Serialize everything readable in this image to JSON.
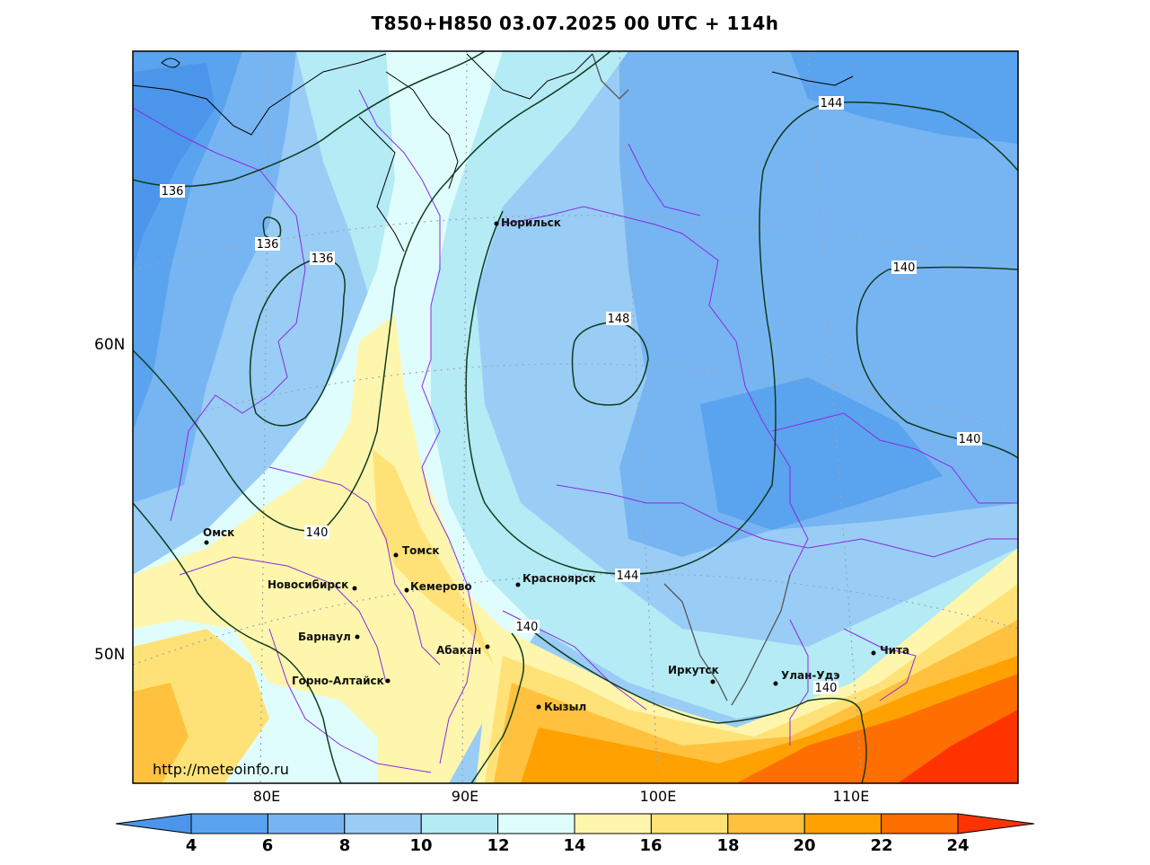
{
  "title": "T850+H850 03.07.2025 00 UTC + 114h",
  "latitude_labels": [
    "60N",
    "50N"
  ],
  "longitude_labels": [
    "80E",
    "90E",
    "100E",
    "110E"
  ],
  "watermark": "http://meteoinfo.ru",
  "colorbar": {
    "ticks": [
      "4",
      "6",
      "8",
      "10",
      "12",
      "14",
      "16",
      "18",
      "20",
      "22",
      "24"
    ],
    "colors": [
      "#4b96ea",
      "#5aa3ee",
      "#77b5f2",
      "#99cdf6",
      "#b4ebf5",
      "#e0fdfd",
      "#fff6ad",
      "#ffe277",
      "#ffc13e",
      "#ffa100",
      "#ff6e00",
      "#ff3300"
    ]
  },
  "cities": [
    {
      "name": "Норильск"
    },
    {
      "name": "Омск"
    },
    {
      "name": "Томск"
    },
    {
      "name": "Новосибирск"
    },
    {
      "name": "Кемерово"
    },
    {
      "name": "Красноярск"
    },
    {
      "name": "Барнаул"
    },
    {
      "name": "Абакан"
    },
    {
      "name": "Иркутск"
    },
    {
      "name": "Улан-Удэ"
    },
    {
      "name": "Чита"
    },
    {
      "name": "Горно-Алтайск"
    },
    {
      "name": "Кызыл"
    }
  ],
  "contour_labels": [
    "136",
    "136",
    "136",
    "140",
    "140",
    "140",
    "140",
    "140",
    "144",
    "144",
    "148"
  ]
}
